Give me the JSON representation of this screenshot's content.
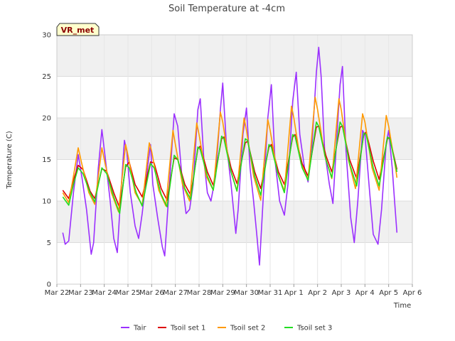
{
  "chart_data": {
    "type": "line",
    "title": "Soil Temperature at -4cm",
    "xlabel": "Time",
    "ylabel": "Temperature (C)",
    "badge": "VR_met",
    "xlim": [
      0,
      15
    ],
    "ylim": [
      0,
      30
    ],
    "yticks": [
      0,
      5,
      10,
      15,
      20,
      25,
      30
    ],
    "bands": [
      [
        5,
        10
      ],
      [
        15,
        20
      ],
      [
        25,
        30
      ]
    ],
    "band_color": "#f0f0f0",
    "grid": true,
    "legend_position": "bottom",
    "xticks": [
      {
        "x": 0,
        "label": "Mar 22"
      },
      {
        "x": 1,
        "label": "Mar 23"
      },
      {
        "x": 2,
        "label": "Mar 24"
      },
      {
        "x": 3,
        "label": "Mar 25"
      },
      {
        "x": 4,
        "label": "Mar 26"
      },
      {
        "x": 5,
        "label": "Mar 27"
      },
      {
        "x": 6,
        "label": "Mar 28"
      },
      {
        "x": 7,
        "label": "Mar 29"
      },
      {
        "x": 8,
        "label": "Mar 30"
      },
      {
        "x": 9,
        "label": "Mar 31"
      },
      {
        "x": 10,
        "label": "Apr 1"
      },
      {
        "x": 11,
        "label": "Apr 2"
      },
      {
        "x": 12,
        "label": "Apr 3"
      },
      {
        "x": 13,
        "label": "Apr 4"
      },
      {
        "x": 14,
        "label": "Apr 5"
      },
      {
        "x": 15,
        "label": "Apr 6"
      }
    ],
    "series": [
      {
        "name": "Tair",
        "color": "#9b30ff",
        "points": [
          [
            0.25,
            6.2
          ],
          [
            0.35,
            4.8
          ],
          [
            0.5,
            5.2
          ],
          [
            0.7,
            11
          ],
          [
            0.9,
            15.6
          ],
          [
            1.05,
            13
          ],
          [
            1.25,
            9
          ],
          [
            1.45,
            3.6
          ],
          [
            1.55,
            5
          ],
          [
            1.75,
            14
          ],
          [
            1.9,
            18.6
          ],
          [
            2.05,
            15
          ],
          [
            2.25,
            10
          ],
          [
            2.4,
            5.5
          ],
          [
            2.55,
            3.8
          ],
          [
            2.7,
            11
          ],
          [
            2.85,
            17.3
          ],
          [
            2.95,
            16
          ],
          [
            3.1,
            11
          ],
          [
            3.3,
            7
          ],
          [
            3.45,
            5.5
          ],
          [
            3.6,
            8.5
          ],
          [
            3.8,
            13.5
          ],
          [
            3.95,
            16.8
          ],
          [
            4.05,
            12
          ],
          [
            4.25,
            8
          ],
          [
            4.45,
            4.5
          ],
          [
            4.55,
            3.4
          ],
          [
            4.75,
            12
          ],
          [
            4.95,
            20.5
          ],
          [
            5.1,
            19
          ],
          [
            5.3,
            12
          ],
          [
            5.45,
            8.5
          ],
          [
            5.6,
            9
          ],
          [
            5.75,
            12
          ],
          [
            5.95,
            21
          ],
          [
            6.05,
            22.3
          ],
          [
            6.2,
            15
          ],
          [
            6.35,
            11
          ],
          [
            6.5,
            10
          ],
          [
            6.7,
            13
          ],
          [
            6.9,
            21
          ],
          [
            7.0,
            24.2
          ],
          [
            7.15,
            17
          ],
          [
            7.35,
            12
          ],
          [
            7.55,
            6.1
          ],
          [
            7.65,
            9
          ],
          [
            7.85,
            18
          ],
          [
            8.0,
            21.2
          ],
          [
            8.15,
            14
          ],
          [
            8.3,
            10
          ],
          [
            8.45,
            5.5
          ],
          [
            8.55,
            2.3
          ],
          [
            8.7,
            10
          ],
          [
            8.9,
            20
          ],
          [
            9.05,
            24
          ],
          [
            9.2,
            15
          ],
          [
            9.4,
            10
          ],
          [
            9.6,
            8.3
          ],
          [
            9.75,
            12
          ],
          [
            9.95,
            22
          ],
          [
            10.1,
            25.5
          ],
          [
            10.25,
            18
          ],
          [
            10.45,
            14
          ],
          [
            10.6,
            12.3
          ],
          [
            10.75,
            16
          ],
          [
            10.95,
            25.5
          ],
          [
            11.05,
            28.5
          ],
          [
            11.15,
            25
          ],
          [
            11.3,
            16
          ],
          [
            11.5,
            12
          ],
          [
            11.65,
            9.7
          ],
          [
            11.8,
            17
          ],
          [
            11.95,
            24
          ],
          [
            12.05,
            26.2
          ],
          [
            12.2,
            16
          ],
          [
            12.4,
            8
          ],
          [
            12.55,
            5
          ],
          [
            12.7,
            10
          ],
          [
            12.9,
            18.5
          ],
          [
            13.0,
            18
          ],
          [
            13.2,
            11
          ],
          [
            13.35,
            6
          ],
          [
            13.55,
            4.8
          ],
          [
            13.7,
            9
          ],
          [
            13.9,
            17
          ],
          [
            14.0,
            18.5
          ],
          [
            14.15,
            14
          ],
          [
            14.25,
            10
          ],
          [
            14.35,
            6.2
          ]
        ]
      },
      {
        "name": "Tsoil set 1",
        "color": "#dd0000",
        "points": [
          [
            0.25,
            11.3
          ],
          [
            0.5,
            10.3
          ],
          [
            0.7,
            12.5
          ],
          [
            0.9,
            14.3
          ],
          [
            1.1,
            13.8
          ],
          [
            1.4,
            11.2
          ],
          [
            1.6,
            10.3
          ],
          [
            1.9,
            13.9
          ],
          [
            2.1,
            13.6
          ],
          [
            2.4,
            11
          ],
          [
            2.65,
            9.2
          ],
          [
            2.9,
            14.1
          ],
          [
            3.05,
            14.7
          ],
          [
            3.3,
            12
          ],
          [
            3.6,
            10.5
          ],
          [
            3.95,
            14.7
          ],
          [
            4.1,
            14.6
          ],
          [
            4.4,
            11.5
          ],
          [
            4.65,
            10.1
          ],
          [
            4.95,
            15.2
          ],
          [
            5.1,
            15
          ],
          [
            5.4,
            12
          ],
          [
            5.65,
            10.7
          ],
          [
            5.95,
            16.3
          ],
          [
            6.05,
            16.6
          ],
          [
            6.35,
            13.5
          ],
          [
            6.6,
            11.9
          ],
          [
            6.95,
            17.5
          ],
          [
            7.05,
            17.7
          ],
          [
            7.35,
            14
          ],
          [
            7.6,
            12.1
          ],
          [
            7.95,
            17
          ],
          [
            8.05,
            17.2
          ],
          [
            8.35,
            13.5
          ],
          [
            8.6,
            11.5
          ],
          [
            8.95,
            16.5
          ],
          [
            9.05,
            16.8
          ],
          [
            9.35,
            13.5
          ],
          [
            9.6,
            12
          ],
          [
            9.95,
            17.7
          ],
          [
            10.05,
            18
          ],
          [
            10.35,
            14.5
          ],
          [
            10.6,
            13
          ],
          [
            10.95,
            18.9
          ],
          [
            11.05,
            19
          ],
          [
            11.35,
            15.5
          ],
          [
            11.6,
            13.5
          ],
          [
            11.95,
            18.9
          ],
          [
            12.05,
            19
          ],
          [
            12.35,
            15
          ],
          [
            12.65,
            12.7
          ],
          [
            12.95,
            18
          ],
          [
            13.05,
            18.3
          ],
          [
            13.35,
            14.8
          ],
          [
            13.6,
            12.6
          ],
          [
            13.95,
            17.5
          ],
          [
            14.05,
            17.6
          ],
          [
            14.35,
            13.8
          ]
        ]
      },
      {
        "name": "Tsoil set 2",
        "color": "#ff9900",
        "points": [
          [
            0.25,
            11
          ],
          [
            0.5,
            9.8
          ],
          [
            0.7,
            13
          ],
          [
            0.9,
            16.4
          ],
          [
            1.05,
            14.5
          ],
          [
            1.35,
            11
          ],
          [
            1.6,
            9.6
          ],
          [
            1.9,
            16.4
          ],
          [
            2.0,
            15
          ],
          [
            2.3,
            11
          ],
          [
            2.6,
            8.7
          ],
          [
            2.9,
            16.8
          ],
          [
            3.0,
            15.5
          ],
          [
            3.3,
            11
          ],
          [
            3.6,
            9.5
          ],
          [
            3.9,
            17
          ],
          [
            4.0,
            16
          ],
          [
            4.3,
            11.3
          ],
          [
            4.6,
            9.4
          ],
          [
            4.9,
            18.5
          ],
          [
            5.0,
            16.8
          ],
          [
            5.3,
            12
          ],
          [
            5.6,
            10
          ],
          [
            5.9,
            19.4
          ],
          [
            6.0,
            18
          ],
          [
            6.3,
            13
          ],
          [
            6.6,
            11.3
          ],
          [
            6.9,
            20.7
          ],
          [
            7.0,
            19.5
          ],
          [
            7.3,
            14
          ],
          [
            7.6,
            11.2
          ],
          [
            7.9,
            20
          ],
          [
            8.0,
            18.5
          ],
          [
            8.3,
            13
          ],
          [
            8.6,
            10.1
          ],
          [
            8.9,
            19.8
          ],
          [
            9.0,
            18.5
          ],
          [
            9.3,
            13.5
          ],
          [
            9.6,
            11.2
          ],
          [
            9.9,
            21.4
          ],
          [
            10.0,
            20
          ],
          [
            10.3,
            14.5
          ],
          [
            10.6,
            12.6
          ],
          [
            10.9,
            22.5
          ],
          [
            11.0,
            21
          ],
          [
            11.3,
            15.5
          ],
          [
            11.6,
            12.7
          ],
          [
            11.9,
            22.3
          ],
          [
            12.0,
            21
          ],
          [
            12.3,
            15
          ],
          [
            12.6,
            11.5
          ],
          [
            12.9,
            20.5
          ],
          [
            13.0,
            19.5
          ],
          [
            13.3,
            14
          ],
          [
            13.6,
            11.3
          ],
          [
            13.9,
            20.3
          ],
          [
            14.0,
            19
          ],
          [
            14.3,
            13.8
          ],
          [
            14.35,
            12.8
          ]
        ]
      },
      {
        "name": "Tsoil set 3",
        "color": "#22dd22",
        "points": [
          [
            0.25,
            10.5
          ],
          [
            0.5,
            9.5
          ],
          [
            0.7,
            12
          ],
          [
            0.9,
            14
          ],
          [
            1.1,
            13.3
          ],
          [
            1.4,
            11
          ],
          [
            1.6,
            9.9
          ],
          [
            1.9,
            14
          ],
          [
            2.1,
            13.3
          ],
          [
            2.4,
            10.5
          ],
          [
            2.65,
            8.5
          ],
          [
            2.9,
            14.4
          ],
          [
            3.05,
            14
          ],
          [
            3.35,
            11
          ],
          [
            3.6,
            9.4
          ],
          [
            3.95,
            14.5
          ],
          [
            4.1,
            14
          ],
          [
            4.4,
            10.8
          ],
          [
            4.65,
            9.3
          ],
          [
            4.95,
            15.5
          ],
          [
            5.1,
            15
          ],
          [
            5.4,
            11.5
          ],
          [
            5.65,
            10.2
          ],
          [
            5.95,
            16.5
          ],
          [
            6.05,
            16.2
          ],
          [
            6.35,
            13
          ],
          [
            6.6,
            11.3
          ],
          [
            6.95,
            17.8
          ],
          [
            7.05,
            17.5
          ],
          [
            7.35,
            13.5
          ],
          [
            7.6,
            11.2
          ],
          [
            7.95,
            17.5
          ],
          [
            8.05,
            17.3
          ],
          [
            8.35,
            13
          ],
          [
            8.6,
            10.7
          ],
          [
            8.95,
            16.8
          ],
          [
            9.05,
            16.5
          ],
          [
            9.35,
            13
          ],
          [
            9.6,
            11
          ],
          [
            9.95,
            18
          ],
          [
            10.05,
            17.8
          ],
          [
            10.35,
            14
          ],
          [
            10.6,
            12.5
          ],
          [
            10.95,
            19.5
          ],
          [
            11.05,
            19
          ],
          [
            11.35,
            15
          ],
          [
            11.6,
            12.8
          ],
          [
            11.95,
            19.5
          ],
          [
            12.05,
            19
          ],
          [
            12.35,
            14.5
          ],
          [
            12.65,
            11.8
          ],
          [
            12.95,
            18.2
          ],
          [
            13.05,
            18
          ],
          [
            13.35,
            14
          ],
          [
            13.6,
            11.8
          ],
          [
            13.95,
            17.7
          ],
          [
            14.05,
            17.5
          ],
          [
            14.35,
            13.5
          ]
        ]
      }
    ]
  }
}
